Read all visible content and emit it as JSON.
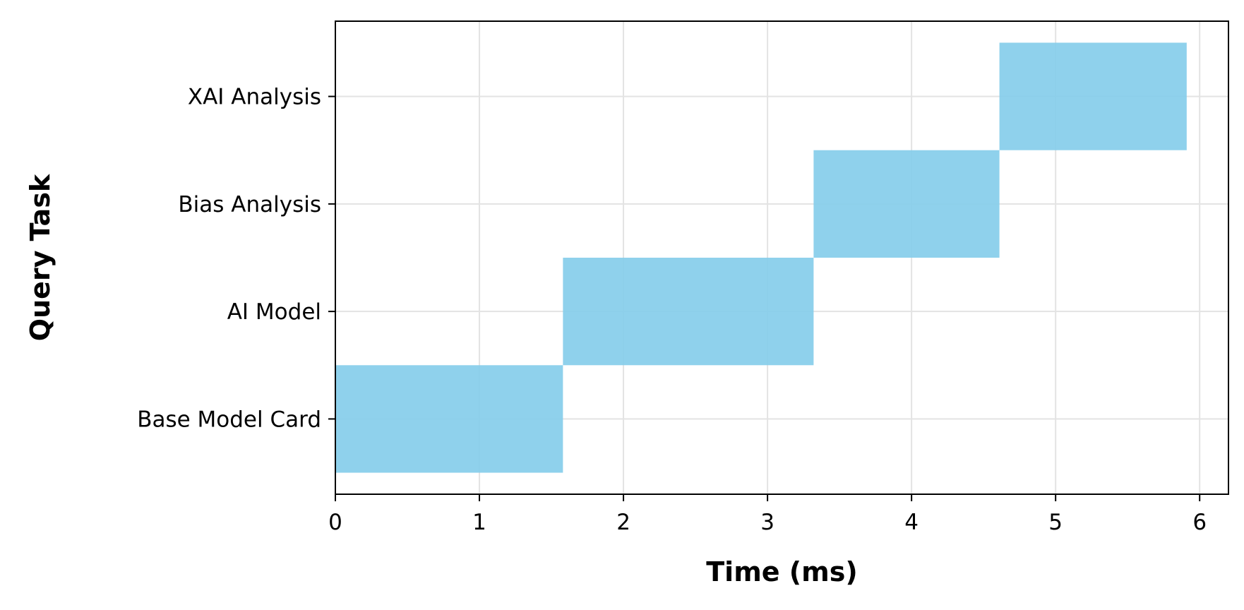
{
  "chart_data": {
    "type": "bar",
    "orientation": "horizontal",
    "title": "",
    "xlabel": "Time (ms)",
    "ylabel": "Query Task",
    "categories": [
      "Base Model Card",
      "AI Model",
      "Bias Analysis",
      "XAI Analysis"
    ],
    "start": [
      0.0,
      1.58,
      3.32,
      4.61
    ],
    "end": [
      1.58,
      3.32,
      4.61,
      5.91
    ],
    "xlim": [
      0,
      6.2
    ],
    "xticks": [
      0,
      1,
      2,
      3,
      4,
      5,
      6
    ],
    "xtick_labels": [
      "0",
      "1",
      "2",
      "3",
      "4",
      "5",
      "6"
    ],
    "grid": true,
    "legend": "none",
    "bar_color": "#87ceeb",
    "grid_color": "#e3e3e3"
  }
}
